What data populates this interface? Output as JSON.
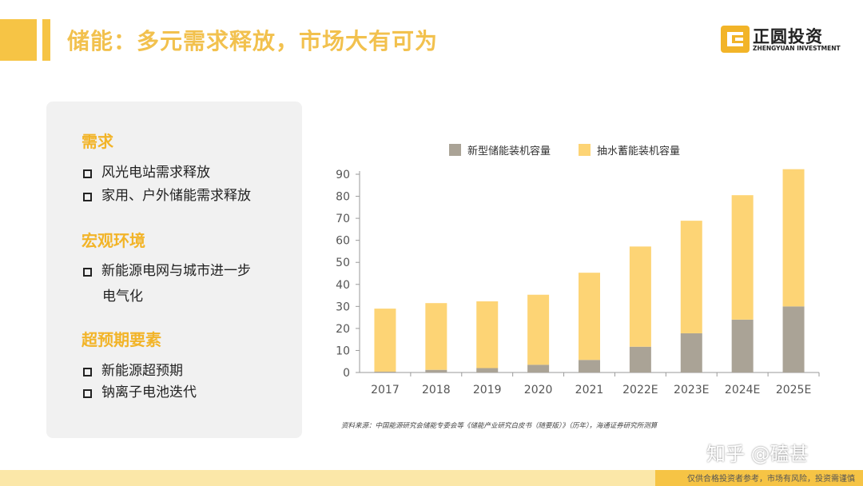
{
  "header": {
    "title": "储能：多元需求释放，市场大有可为",
    "logo_cn": "正圆投资",
    "logo_en": "ZHENGYUAN INVESTMENT"
  },
  "panel": {
    "sections": [
      {
        "title": "需求",
        "items": [
          "风光电站需求释放",
          "家用、户外储能需求释放"
        ]
      },
      {
        "title": "宏观环境",
        "items": [
          "新能源电网与城市进一步",
          "电气化"
        ]
      },
      {
        "title": "超预期要素",
        "items": [
          "新能源超预期",
          "钠离子电池迭代"
        ]
      }
    ]
  },
  "chart_data": {
    "type": "bar",
    "stacked": true,
    "categories": [
      "2017",
      "2018",
      "2019",
      "2020",
      "2021",
      "2022E",
      "2023E",
      "2024E",
      "2025E"
    ],
    "series": [
      {
        "name": "新型储能装机容量",
        "color": "#aaa396",
        "values": [
          0.4,
          1.2,
          2.0,
          3.5,
          5.7,
          11.7,
          17.8,
          24.0,
          30.0
        ]
      },
      {
        "name": "抽水蓄能装机容量",
        "color": "#fdd475",
        "values": [
          28.6,
          30.3,
          30.3,
          31.8,
          39.6,
          45.5,
          51.1,
          56.5,
          62.3
        ]
      }
    ],
    "ylim": [
      0,
      90
    ],
    "yticks": [
      0,
      10,
      20,
      30,
      40,
      50,
      60,
      70,
      80,
      90
    ],
    "legend_position": "top",
    "grid": false
  },
  "source_note": "资料来源：中国能源研究会储能专委会等《储能产业研究白皮书（随要版）》（历年），海通证券研究所测算",
  "watermark": "知乎 @磕甚",
  "footer_note": "仅供合格投资者参考，市场有风险，投资需谨慎"
}
